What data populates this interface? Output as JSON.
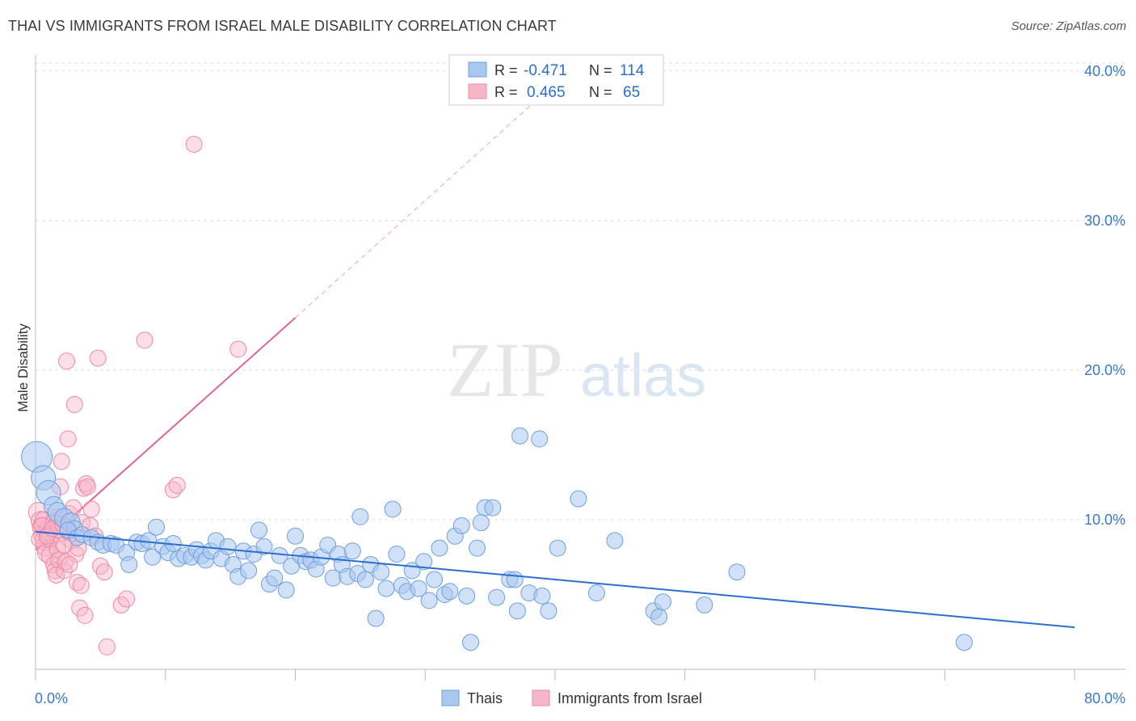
{
  "header": {
    "title": "THAI VS IMMIGRANTS FROM ISRAEL MALE DISABILITY CORRELATION CHART",
    "source": "Source: ZipAtlas.com"
  },
  "watermark": {
    "zip": "ZIP",
    "atlas": "atlas"
  },
  "legend_box": {
    "rows": [
      {
        "r_label": "R =",
        "r_value": "-0.471",
        "n_label": "N =",
        "n_value": "114",
        "color": "#a9c8f0"
      },
      {
        "r_label": "R =",
        "r_value": "0.465",
        "n_label": "N =",
        "n_value": "65",
        "color": "#f7b6c8"
      }
    ]
  },
  "bottom_legend": [
    {
      "label": "Thais",
      "color": "#a9c8f0"
    },
    {
      "label": "Immigrants from Israel",
      "color": "#f7b6c8"
    }
  ],
  "colors": {
    "blue_fill": "#a9c8f0",
    "blue_stroke": "#6f9fdc",
    "blue_line": "#2a6fd0",
    "pink_fill": "#f7b6c8",
    "pink_stroke": "#ee88a8",
    "pink_line": "#e0668f",
    "axis_text": "#3a78c8",
    "grid": "#dddddd"
  },
  "chart_data": {
    "type": "scatter",
    "title": "THAI VS IMMIGRANTS FROM ISRAEL MALE DISABILITY CORRELATION CHART",
    "xlabel": "",
    "ylabel": "Male Disability",
    "xlim": [
      0,
      80
    ],
    "ylim": [
      0,
      41.5
    ],
    "x_tick_labels": [
      "0.0%",
      "80.0%"
    ],
    "y_ticks": [
      10,
      20,
      30,
      40
    ],
    "y_tick_labels": [
      "10.0%",
      "20.0%",
      "30.0%",
      "40.0%"
    ],
    "grid": true,
    "series": [
      {
        "name": "Thais",
        "r": -0.471,
        "n": 114,
        "trend": {
          "x0": 0,
          "y0": 9.2,
          "x1": 80,
          "y1": 2.8
        },
        "points": [
          [
            0.1,
            14.2,
            3
          ],
          [
            0.6,
            12.8,
            2
          ],
          [
            1.0,
            11.8,
            2
          ],
          [
            1.4,
            10.9,
            1.5
          ],
          [
            1.7,
            10.5,
            1.5
          ],
          [
            2.2,
            10.1,
            1.5
          ],
          [
            2.7,
            9.8,
            1.5
          ],
          [
            3.0,
            9.4,
            1
          ],
          [
            2.5,
            9.3,
            1
          ],
          [
            3.2,
            8.8,
            1
          ],
          [
            3.6,
            9.0,
            1
          ],
          [
            4.3,
            8.8,
            1
          ],
          [
            4.8,
            8.5,
            1
          ],
          [
            5.2,
            8.3,
            1
          ],
          [
            5.8,
            8.4,
            1
          ],
          [
            6.2,
            8.3,
            1
          ],
          [
            7.0,
            7.8,
            1
          ],
          [
            7.2,
            7.0,
            1
          ],
          [
            7.8,
            8.5,
            1
          ],
          [
            8.2,
            8.4,
            1
          ],
          [
            8.7,
            8.6,
            1
          ],
          [
            9.0,
            7.5,
            1
          ],
          [
            9.3,
            9.5,
            1
          ],
          [
            9.8,
            8.2,
            1
          ],
          [
            10.2,
            7.8,
            1
          ],
          [
            10.6,
            8.4,
            1
          ],
          [
            11.0,
            7.4,
            1
          ],
          [
            11.5,
            7.6,
            1
          ],
          [
            12.0,
            7.5,
            1
          ],
          [
            12.4,
            8.0,
            1
          ],
          [
            12.8,
            7.6,
            1
          ],
          [
            13.1,
            7.3,
            1
          ],
          [
            13.5,
            7.9,
            1
          ],
          [
            13.9,
            8.6,
            1
          ],
          [
            14.3,
            7.4,
            1
          ],
          [
            14.8,
            8.2,
            1
          ],
          [
            15.2,
            7.0,
            1
          ],
          [
            15.6,
            6.2,
            1
          ],
          [
            16.0,
            7.9,
            1
          ],
          [
            16.4,
            6.6,
            1
          ],
          [
            16.8,
            7.7,
            1
          ],
          [
            17.2,
            9.3,
            1
          ],
          [
            17.6,
            8.2,
            1
          ],
          [
            18.0,
            5.7,
            1
          ],
          [
            18.4,
            6.1,
            1
          ],
          [
            18.8,
            7.6,
            1
          ],
          [
            19.3,
            5.3,
            1
          ],
          [
            19.7,
            6.9,
            1
          ],
          [
            20.0,
            8.9,
            1
          ],
          [
            20.4,
            7.6,
            1
          ],
          [
            20.8,
            7.2,
            1
          ],
          [
            21.2,
            7.3,
            1
          ],
          [
            21.6,
            6.7,
            1
          ],
          [
            22.0,
            7.5,
            1
          ],
          [
            22.5,
            8.3,
            1
          ],
          [
            22.9,
            6.1,
            1
          ],
          [
            23.3,
            7.7,
            1
          ],
          [
            23.6,
            7.0,
            1
          ],
          [
            24.0,
            6.2,
            1
          ],
          [
            24.4,
            7.9,
            1
          ],
          [
            24.8,
            6.4,
            1
          ],
          [
            25.0,
            10.2,
            1
          ],
          [
            25.4,
            6.0,
            1
          ],
          [
            25.8,
            7.0,
            1
          ],
          [
            26.2,
            3.4,
            1
          ],
          [
            26.6,
            6.5,
            1
          ],
          [
            27.0,
            5.4,
            1
          ],
          [
            27.5,
            10.7,
            1
          ],
          [
            27.8,
            7.7,
            1
          ],
          [
            28.2,
            5.6,
            1
          ],
          [
            28.6,
            5.2,
            1
          ],
          [
            29.0,
            6.6,
            1
          ],
          [
            29.5,
            5.4,
            1
          ],
          [
            29.9,
            7.2,
            1
          ],
          [
            30.3,
            4.6,
            1
          ],
          [
            30.7,
            6.0,
            1
          ],
          [
            31.1,
            8.1,
            1
          ],
          [
            31.5,
            5.0,
            1
          ],
          [
            31.9,
            5.2,
            1
          ],
          [
            32.3,
            8.9,
            1
          ],
          [
            32.8,
            9.6,
            1
          ],
          [
            33.2,
            4.9,
            1
          ],
          [
            33.5,
            1.8,
            1
          ],
          [
            34.0,
            8.1,
            1
          ],
          [
            34.3,
            9.8,
            1
          ],
          [
            34.6,
            10.8,
            1
          ],
          [
            35.2,
            10.8,
            1
          ],
          [
            35.5,
            4.8,
            1
          ],
          [
            36.5,
            6.0,
            1
          ],
          [
            36.9,
            6.0,
            1
          ],
          [
            37.1,
            3.9,
            1
          ],
          [
            37.3,
            15.6,
            1
          ],
          [
            38.0,
            5.1,
            1
          ],
          [
            38.8,
            15.4,
            1
          ],
          [
            39.0,
            4.9,
            1
          ],
          [
            39.5,
            3.9,
            1
          ],
          [
            40.2,
            8.1,
            1
          ],
          [
            41.8,
            11.4,
            1
          ],
          [
            43.2,
            5.1,
            1
          ],
          [
            44.6,
            8.6,
            1
          ],
          [
            47.6,
            3.9,
            1
          ],
          [
            48.0,
            3.5,
            1
          ],
          [
            48.3,
            4.5,
            1
          ],
          [
            51.5,
            4.3,
            1
          ],
          [
            54.0,
            6.5,
            1
          ],
          [
            71.5,
            1.8,
            1
          ]
        ]
      },
      {
        "name": "Immigrants from Israel",
        "r": 0.465,
        "n": 65,
        "trend": {
          "x0": 0,
          "y0": 8.0,
          "x1": 20,
          "y1": 23.5,
          "dash_to_x": 38.5,
          "dash_to_y": 38.0
        },
        "points": [
          [
            0.2,
            10.5,
            1.5
          ],
          [
            0.4,
            9.9,
            1.5
          ],
          [
            0.5,
            9.5,
            1.5
          ],
          [
            0.6,
            9.0,
            1.5
          ],
          [
            0.7,
            8.6,
            1.5
          ],
          [
            0.8,
            8.2,
            1.5
          ],
          [
            0.9,
            7.8,
            1.5
          ],
          [
            1.0,
            9.3,
            1.5
          ],
          [
            1.1,
            8.8,
            1.5
          ],
          [
            1.2,
            7.6,
            1.5
          ],
          [
            1.3,
            9.7,
            1
          ],
          [
            1.4,
            7.0,
            1
          ],
          [
            1.5,
            6.6,
            1
          ],
          [
            1.6,
            6.3,
            1
          ],
          [
            1.7,
            8.0,
            1
          ],
          [
            1.8,
            7.3,
            1
          ],
          [
            1.9,
            12.2,
            1
          ],
          [
            2.0,
            13.9,
            1
          ],
          [
            2.1,
            9.1,
            1
          ],
          [
            2.2,
            6.6,
            1
          ],
          [
            2.3,
            7.2,
            1
          ],
          [
            2.4,
            20.6,
            1
          ],
          [
            2.5,
            15.4,
            1
          ],
          [
            2.6,
            10.4,
            1
          ],
          [
            2.7,
            9.1,
            1
          ],
          [
            2.8,
            8.6,
            1
          ],
          [
            2.9,
            10.8,
            1
          ],
          [
            3.0,
            17.7,
            1
          ],
          [
            3.1,
            7.7,
            1
          ],
          [
            3.2,
            5.8,
            1
          ],
          [
            3.3,
            8.1,
            1
          ],
          [
            3.4,
            4.1,
            1
          ],
          [
            3.5,
            5.6,
            1
          ],
          [
            3.6,
            9.8,
            1
          ],
          [
            3.7,
            12.1,
            1
          ],
          [
            3.8,
            3.6,
            1
          ],
          [
            3.9,
            12.4,
            1
          ],
          [
            4.0,
            12.2,
            1
          ],
          [
            4.2,
            9.6,
            1
          ],
          [
            4.3,
            10.7,
            1
          ],
          [
            4.6,
            8.9,
            1
          ],
          [
            4.8,
            20.8,
            1
          ],
          [
            5.0,
            6.9,
            1
          ],
          [
            5.3,
            6.5,
            1
          ],
          [
            5.5,
            1.5,
            1
          ],
          [
            6.6,
            4.3,
            1
          ],
          [
            7.0,
            4.7,
            1
          ],
          [
            8.4,
            22.0,
            1
          ],
          [
            10.6,
            12.0,
            1
          ],
          [
            10.9,
            12.3,
            1
          ],
          [
            12.2,
            35.1,
            1
          ],
          [
            15.6,
            21.4,
            1
          ],
          [
            0.3,
            8.7,
            1
          ],
          [
            0.6,
            10.0,
            1
          ],
          [
            1.0,
            9.1,
            1
          ],
          [
            1.4,
            9.9,
            1
          ],
          [
            1.8,
            9.3,
            1
          ],
          [
            2.2,
            8.3,
            1
          ],
          [
            2.6,
            7.0,
            1
          ],
          [
            0.5,
            9.6,
            1
          ],
          [
            0.9,
            8.9,
            1
          ],
          [
            1.3,
            9.4,
            1
          ],
          [
            1.7,
            10.2,
            1
          ],
          [
            2.1,
            9.7,
            1
          ],
          [
            2.5,
            9.2,
            1
          ]
        ]
      }
    ]
  }
}
